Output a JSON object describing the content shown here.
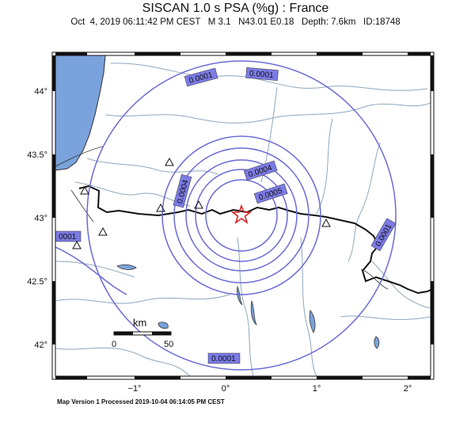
{
  "title": "SISCAN 1.0 s PSA (%g) : France",
  "subtitle": "Oct  4, 2019 06:11:42 PM CEST   M 3.1   N43.01 E0.18   Depth: 7.6km   ID:18748",
  "footer": "Map Version 1 Processed 2019-10-04 06:14:05 PM CEST",
  "axes": {
    "lat_ticks": [
      "44°",
      "43.5°",
      "43°",
      "42.5°",
      "42°"
    ],
    "lon_ticks": [
      "−1°",
      "0°",
      "1°",
      "2°"
    ]
  },
  "scale_bar": {
    "unit": "km",
    "start": "0",
    "end": "50"
  },
  "contour_labels": [
    "0.0001",
    "0.0001",
    "0.0004",
    "0.0005",
    "0.0004",
    "0001",
    "0.0001",
    "0.0001"
  ],
  "epicenter": {
    "lat": 43.01,
    "lon": 0.18
  },
  "colors": {
    "contour": "#6a6ad6",
    "label_bg": "#7b7be6",
    "sea": "#7aa2dc",
    "border": "#111111",
    "river": "#8fa8bc",
    "epicenter": "#e02020"
  }
}
